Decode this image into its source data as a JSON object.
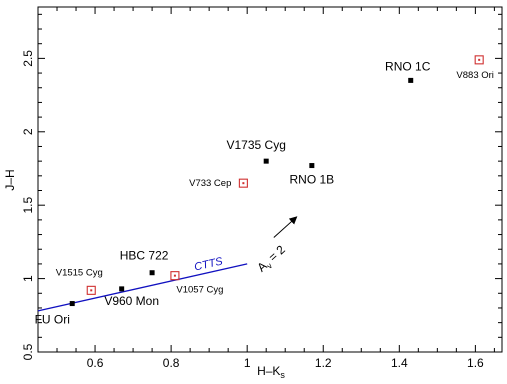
{
  "chart_data": {
    "type": "scatter",
    "title": "",
    "xlabel": "H–K",
    "xlabel_sub": "s",
    "ylabel": "J–H",
    "xlim": [
      0.45,
      1.67
    ],
    "ylim": [
      0.5,
      2.85
    ],
    "xticks": [
      0.6,
      0.8,
      1.0,
      1.2,
      1.4,
      1.6
    ],
    "xtick_labels": [
      "0.6",
      "0.8",
      "1",
      "1.2",
      "1.4",
      "1.6"
    ],
    "yticks": [
      0.5,
      1.0,
      1.5,
      2.0,
      2.5
    ],
    "ytick_labels": [
      "0.5",
      "1",
      "1.5",
      "2",
      "2.5"
    ],
    "grid": false,
    "series": [
      {
        "marker": "filled-square",
        "color": "#000000",
        "points": [
          {
            "label": "FU Ori",
            "x": 0.54,
            "y": 0.83
          },
          {
            "label": "V960 Mon",
            "x": 0.67,
            "y": 0.93
          },
          {
            "label": "HBC 722",
            "x": 0.75,
            "y": 1.04
          },
          {
            "label": "V1735 Cyg",
            "x": 1.05,
            "y": 1.8
          },
          {
            "label": "RNO 1B",
            "x": 1.17,
            "y": 1.77
          },
          {
            "label": "RNO 1C",
            "x": 1.43,
            "y": 2.35
          }
        ]
      },
      {
        "marker": "open-square-dot",
        "color": "#d03030",
        "points": [
          {
            "label": "V1515 Cyg",
            "x": 0.59,
            "y": 0.92
          },
          {
            "label": "V1057 Cyg",
            "x": 0.81,
            "y": 1.02
          },
          {
            "label": "V733 Cep",
            "x": 0.99,
            "y": 1.65
          },
          {
            "label": "V883 Ori",
            "x": 1.61,
            "y": 2.49
          }
        ]
      }
    ],
    "ctts_locus": {
      "label": "CTTS",
      "color": "#1010c0",
      "x": [
        0.45,
        1.0
      ],
      "y": [
        0.78,
        1.1
      ]
    },
    "reddening_vector": {
      "label_main": "A",
      "label_sub": "v",
      "label_rest": " = 2",
      "x": [
        1.07,
        1.13
      ],
      "y": [
        1.28,
        1.42
      ]
    }
  }
}
